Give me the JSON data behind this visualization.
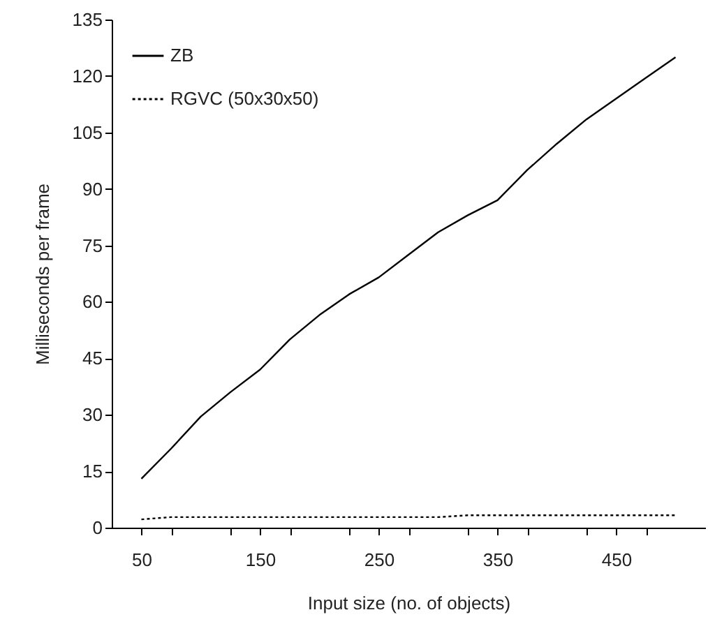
{
  "chart_data": {
    "type": "line",
    "xlabel": "Input size (no. of objects)",
    "ylabel": "Milliseconds per frame",
    "x": [
      50,
      75,
      100,
      125,
      150,
      175,
      200,
      225,
      250,
      275,
      300,
      325,
      350,
      375,
      400,
      425,
      450,
      475,
      500
    ],
    "xlim": [
      25,
      525
    ],
    "xticks": [
      50,
      {
        "value": 75,
        "label": null
      },
      {
        "value": 125,
        "label": null
      },
      150,
      {
        "value": 175,
        "label": null
      },
      {
        "value": 225,
        "label": null
      },
      250,
      {
        "value": 275,
        "label": null
      },
      {
        "value": 325,
        "label": null
      },
      350,
      {
        "value": 375,
        "label": null
      },
      {
        "value": 425,
        "label": null
      },
      450,
      {
        "value": 475,
        "label": null
      }
    ],
    "ylim": [
      0,
      135
    ],
    "yticks": [
      0,
      15,
      30,
      45,
      60,
      75,
      90,
      105,
      120,
      135
    ],
    "series": [
      {
        "name": "ZB",
        "color": "#000000",
        "line_style": "solid",
        "values": [
          13,
          21,
          29.5,
          36,
          42,
          50,
          56.5,
          62,
          66.5,
          72.5,
          78.5,
          83,
          87,
          95,
          102,
          108.5,
          114,
          119.5,
          125
        ]
      },
      {
        "name": "RGVC (50x30x50)",
        "color": "#000000",
        "line_style": "dotted",
        "values": [
          2.2,
          2.8,
          2.8,
          2.8,
          2.8,
          2.8,
          2.8,
          2.8,
          2.8,
          2.8,
          2.8,
          3.3,
          3.3,
          3.3,
          3.3,
          3.3,
          3.3,
          3.3,
          3.3
        ]
      }
    ],
    "legend": "top left",
    "grid": false
  }
}
